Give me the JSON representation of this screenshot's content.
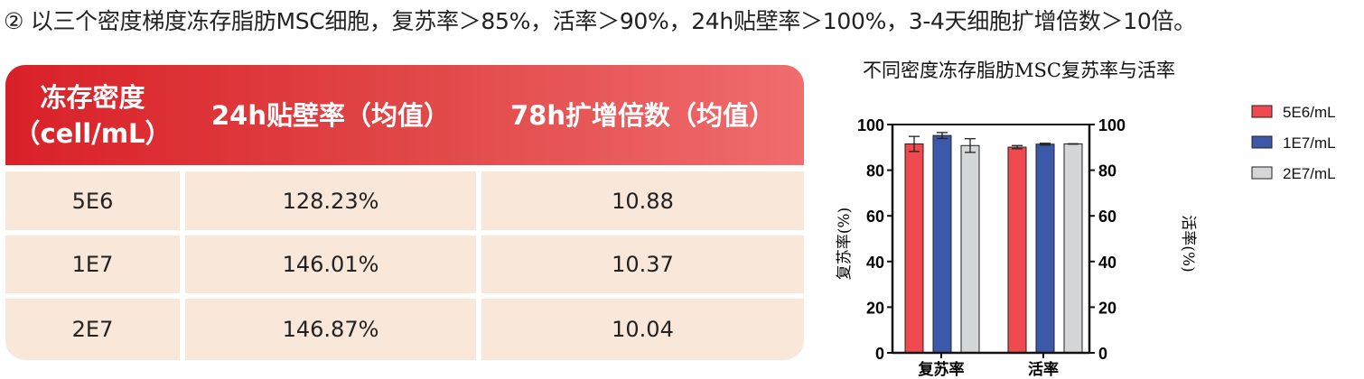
{
  "headline": "② 以三个密度梯度冻存脂肪MSC细胞，复苏率＞85%，活率＞90%，24h贴壁率＞100%，3-4天细胞扩增倍数＞10倍。",
  "chart_data": [
    {
      "type": "table",
      "columns": [
        "冻存密度（cell/mL）",
        "24h贴壁率（均值）",
        "78h扩增倍数（均值）"
      ],
      "column_lines": [
        [
          "冻存密度",
          "（cell/mL）"
        ],
        [
          "24h贴壁率（均值）"
        ],
        [
          "78h扩增倍数（均值）"
        ]
      ],
      "rows": [
        [
          "5E6",
          "128.23%",
          "10.88"
        ],
        [
          "1E7",
          "146.01%",
          "10.37"
        ],
        [
          "2E7",
          "146.87%",
          "10.04"
        ]
      ],
      "colors": {
        "header_start": "#d92028",
        "header_end": "#f06c6e",
        "row_bg": "#f9e7da"
      }
    },
    {
      "type": "bar",
      "title": "不同密度冻存脂肪MSC复苏率与活率",
      "categories": [
        "复苏率",
        "活率"
      ],
      "ylabel": "复苏率(%)",
      "y2label": "活率(%)",
      "ylim": [
        0,
        100
      ],
      "yticks": [
        0,
        20,
        40,
        60,
        80,
        100
      ],
      "legend_position": "top-right",
      "error_bars": true,
      "series": [
        {
          "name": "5E6/mL",
          "color": "#ef4a4f",
          "values": [
            91.5,
            90.1
          ],
          "errors": [
            3.3,
            0.7
          ]
        },
        {
          "name": "1E7/mL",
          "color": "#3b59a8",
          "values": [
            95.2,
            91.4
          ],
          "errors": [
            1.3,
            0.4
          ]
        },
        {
          "name": "2E7/mL",
          "color": "#d5d6d8",
          "values": [
            90.8,
            91.5
          ],
          "errors": [
            3.0,
            0.1
          ]
        }
      ]
    }
  ]
}
